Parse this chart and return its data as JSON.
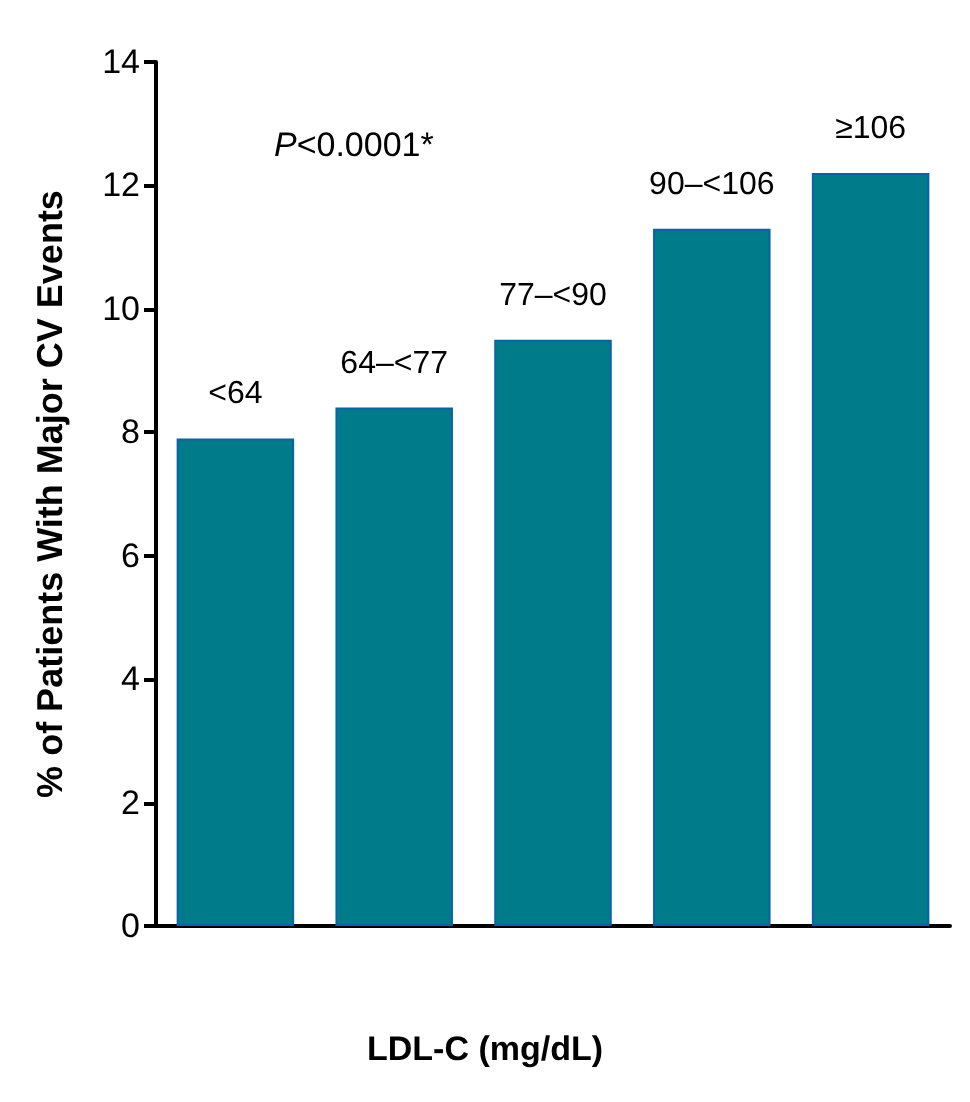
{
  "chart_data": {
    "type": "bar",
    "xlabel": "LDL-C (mg/dL)",
    "ylabel": "% of Patients With Major CV Events",
    "categories": [
      "<64",
      "64–<77",
      "77–<90",
      "90–<106",
      "≥106"
    ],
    "values": [
      7.9,
      8.4,
      9.5,
      11.3,
      12.2
    ],
    "color": "#007b8a",
    "ylim": [
      0,
      14
    ],
    "yticks": [
      0,
      2,
      4,
      6,
      8,
      10,
      12,
      14
    ],
    "grid": false,
    "tick_labels": "y",
    "annotations": [
      "P<0.0001*"
    ]
  }
}
